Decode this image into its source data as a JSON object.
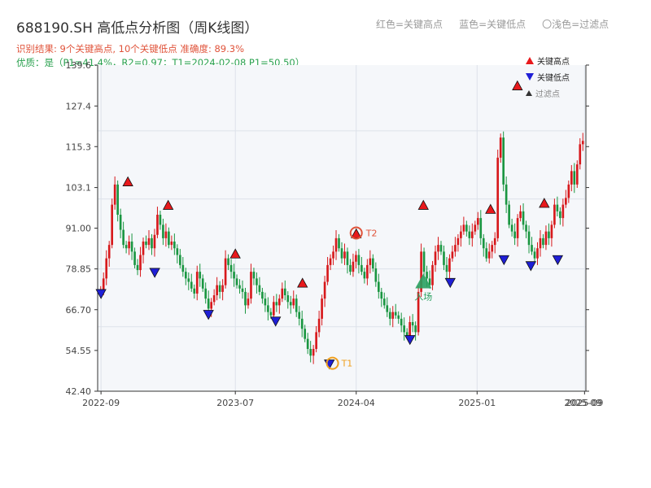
{
  "title": "688190.SH 高低点分析图（周K线图）",
  "subtitle_result": "识别结果: 9个关键高点, 10个关键低点  准确度: 89.3%",
  "subtitle_quality": "优质：是（P1=41.4%，R2=0.97；T1=2024-02-08 P1=50.50）",
  "top_legend": [
    "红色=关键高点",
    "蓝色=关键低点",
    "〇浅色=过滤点"
  ],
  "legend": {
    "high": "关键高点",
    "low": "关键低点",
    "filtered": "过滤点"
  },
  "colors": {
    "up": "#d7191c",
    "down": "#1a9641",
    "high_marker": "#e8191c",
    "low_marker": "#1f1fd6",
    "annot_t1": "#f0a020",
    "annot_t2": "#e0533a",
    "entry": "#2aa060",
    "plot_bg": "#f5f7fa",
    "grid": "#dde2ea"
  },
  "chart_data": {
    "type": "candlestick",
    "title": "688190.SH 高低点分析图（周K线图）",
    "ylim": [
      42.4,
      139.6
    ],
    "yticks": [
      42.4,
      54.55,
      66.7,
      78.85,
      91.0,
      103.1,
      115.3,
      127.4,
      139.6
    ],
    "ytick_labels": [
      "42.40",
      "54.55",
      "66.70",
      "78.85",
      "91.00",
      "103.1",
      "115.3",
      "127.4",
      "139.6"
    ],
    "xticks": [
      "2022-09",
      "2023-07",
      "2024-04",
      "2025-01",
      "2025-09"
    ],
    "xtick_overlap_label": "2025-09",
    "series_close": [
      72.5,
      76.0,
      82.0,
      86.0,
      98.0,
      104.0,
      95.0,
      90.5,
      86.0,
      85.0,
      87.0,
      84.0,
      80.0,
      78.5,
      83.0,
      87.0,
      86.0,
      88.0,
      85.0,
      89.0,
      95.0,
      92.0,
      88.0,
      90.0,
      86.0,
      87.0,
      85.0,
      83.0,
      80.0,
      78.0,
      76.0,
      75.0,
      73.0,
      71.5,
      78.0,
      76.0,
      73.0,
      70.0,
      67.0,
      69.0,
      71.0,
      74.0,
      72.0,
      74.0,
      82.0,
      80.0,
      78.0,
      76.0,
      74.0,
      73.0,
      72.0,
      68.0,
      70.0,
      78.0,
      76.0,
      74.0,
      72.0,
      70.0,
      68.0,
      66.0,
      65.0,
      69.0,
      68.0,
      70.0,
      73.0,
      71.0,
      69.0,
      68.0,
      70.0,
      66.0,
      64.0,
      61.0,
      58.0,
      55.0,
      53.0,
      55.0,
      60.0,
      64.0,
      70.0,
      75.0,
      80.0,
      82.0,
      84.0,
      88.0,
      85.0,
      82.0,
      84.0,
      80.0,
      78.0,
      81.0,
      83.0,
      80.0,
      78.0,
      76.0,
      80.0,
      82.0,
      79.0,
      75.0,
      72.0,
      70.0,
      68.0,
      66.0,
      64.0,
      66.0,
      65.0,
      64.0,
      62.0,
      60.0,
      59.0,
      63.0,
      62.0,
      60.0,
      72.0,
      84.0,
      78.0,
      76.0,
      74.0,
      80.0,
      84.0,
      86.0,
      84.0,
      80.0,
      78.0,
      82.0,
      84.0,
      86.0,
      88.0,
      90.0,
      92.0,
      90.0,
      88.0,
      90.0,
      92.0,
      94.0,
      88.0,
      85.0,
      82.0,
      84.0,
      86.0,
      88.0,
      112.0,
      118.0,
      104.0,
      98.0,
      92.0,
      90.0,
      88.0,
      94.0,
      96.0,
      92.0,
      90.0,
      86.0,
      84.0,
      82.0,
      85.0,
      88.0,
      86.0,
      90.0,
      88.0,
      92.0,
      98.0,
      96.0,
      94.0,
      98.0,
      100.0,
      104.0,
      108.0,
      104.0,
      110.0,
      116.0,
      117.0
    ],
    "key_highs": [
      {
        "date": "2022-11",
        "value": 104.8
      },
      {
        "date": "2023-02",
        "value": 97.8
      },
      {
        "date": "2023-07",
        "value": 83.3
      },
      {
        "date": "2023-12",
        "value": 74.6
      },
      {
        "date": "2024-04",
        "value": 89.3
      },
      {
        "date": "2024-09",
        "value": 97.8
      },
      {
        "date": "2025-02",
        "value": 96.6
      },
      {
        "date": "2025-04",
        "value": 133.4
      },
      {
        "date": "2025-06",
        "value": 98.4
      }
    ],
    "key_lows": [
      {
        "date": "2022-09",
        "value": 71.5
      },
      {
        "date": "2023-01",
        "value": 77.8
      },
      {
        "date": "2023-05",
        "value": 65.3
      },
      {
        "date": "2023-10",
        "value": 63.3
      },
      {
        "date": "2024-02",
        "value": 50.5
      },
      {
        "date": "2024-08",
        "value": 57.8
      },
      {
        "date": "2024-11",
        "value": 74.8
      },
      {
        "date": "2025-03",
        "value": 81.6
      },
      {
        "date": "2025-05",
        "value": 79.8
      },
      {
        "date": "2025-07",
        "value": 81.6
      }
    ],
    "annotations": [
      {
        "label": "T1",
        "date": "2024-02-08",
        "value": 50.5
      },
      {
        "label": "T2",
        "date": "2024-04",
        "value": 89.3
      },
      {
        "label": "入场",
        "date": "2024-09",
        "value": 75.0
      }
    ]
  }
}
